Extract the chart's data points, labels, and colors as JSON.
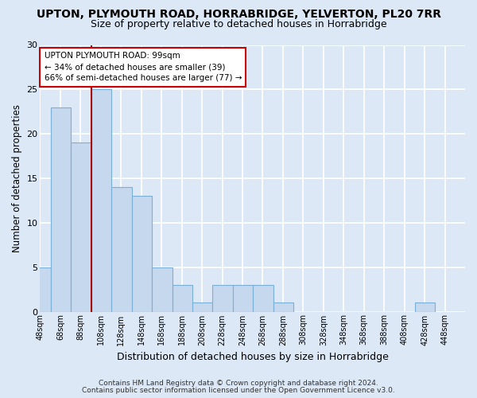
{
  "title": "UPTON, PLYMOUTH ROAD, HORRABRIDGE, YELVERTON, PL20 7RR",
  "subtitle": "Size of property relative to detached houses in Horrabridge",
  "xlabel": "Distribution of detached houses by size in Horrabridge",
  "ylabel": "Number of detached properties",
  "bar_color": "#c5d8ed",
  "bar_edge_color": "#7bafd4",
  "bins_left": [
    48,
    68,
    88,
    108,
    128,
    148,
    168,
    188,
    208,
    228,
    248,
    268,
    288,
    308,
    328,
    348,
    368,
    388,
    408,
    428
  ],
  "bin_width": 20,
  "counts": [
    5,
    23,
    19,
    25,
    14,
    13,
    5,
    3,
    1,
    3,
    3,
    3,
    1,
    0,
    0,
    0,
    0,
    0,
    0,
    1
  ],
  "ylim": [
    0,
    30
  ],
  "yticks": [
    0,
    5,
    10,
    15,
    20,
    25,
    30
  ],
  "xtick_labels": [
    "48sqm",
    "68sqm",
    "88sqm",
    "108sqm",
    "128sqm",
    "148sqm",
    "168sqm",
    "188sqm",
    "208sqm",
    "228sqm",
    "248sqm",
    "268sqm",
    "288sqm",
    "308sqm",
    "328sqm",
    "348sqm",
    "368sqm",
    "388sqm",
    "408sqm",
    "428sqm",
    "448sqm"
  ],
  "property_size": 99,
  "red_line_color": "#aa0000",
  "annotation_line1": "UPTON PLYMOUTH ROAD: 99sqm",
  "annotation_line2": "← 34% of detached houses are smaller (39)",
  "annotation_line3": "66% of semi-detached houses are larger (77) →",
  "annotation_box_facecolor": "#ffffff",
  "annotation_border_color": "#cc0000",
  "footer1": "Contains HM Land Registry data © Crown copyright and database right 2024.",
  "footer2": "Contains public sector information licensed under the Open Government Licence v3.0.",
  "background_color": "#dce8f5",
  "grid_color": "#ffffff",
  "title_fontsize": 10,
  "subtitle_fontsize": 9,
  "tick_label_fontsize": 7,
  "ylabel_fontsize": 8.5,
  "xlabel_fontsize": 9,
  "annotation_fontsize": 7.5,
  "footer_fontsize": 6.5
}
